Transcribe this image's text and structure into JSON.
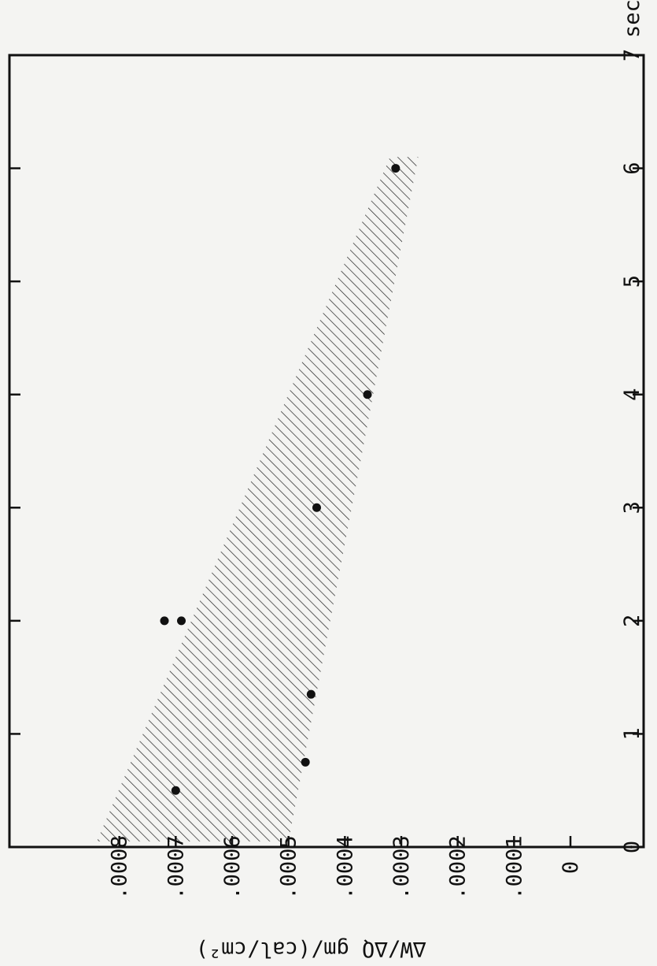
{
  "chart_data": {
    "type": "scatter",
    "xlabel": "sec",
    "ylabel": "∆W/∆Q  gm/(cal/cm²)",
    "xlim": [
      0,
      7
    ],
    "ylim": [
      0,
      0.0009
    ],
    "grid": false,
    "x_ticks": [
      "0",
      "1",
      "2",
      "3",
      "4",
      "5",
      "6",
      "7"
    ],
    "y_ticks": [
      "0",
      ".0001",
      ".0002",
      ".0003",
      ".0004",
      ".0005",
      ".0006",
      ".0007",
      ".0008"
    ],
    "points": [
      {
        "x": 0.5,
        "y": 0.0007
      },
      {
        "x": 0.75,
        "y": 0.00047
      },
      {
        "x": 1.35,
        "y": 0.00046
      },
      {
        "x": 2.0,
        "y": 0.00072
      },
      {
        "x": 2.0,
        "y": 0.00069
      },
      {
        "x": 3.0,
        "y": 0.00045
      },
      {
        "x": 4.0,
        "y": 0.00036
      },
      {
        "x": 6.0,
        "y": 0.00031
      }
    ],
    "band": {
      "upper": [
        [
          0.05,
          0.00084
        ],
        [
          6.1,
          0.00032
        ]
      ],
      "lower": [
        [
          0.05,
          0.0005
        ],
        [
          6.1,
          0.00027
        ]
      ]
    }
  }
}
